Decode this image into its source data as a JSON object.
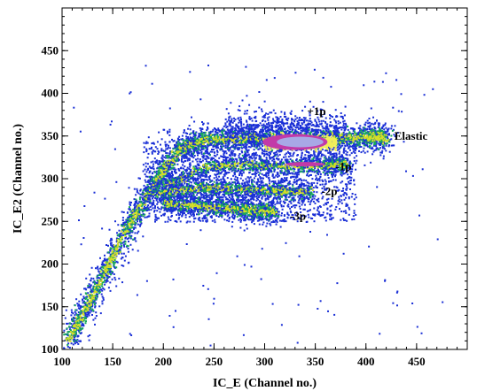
{
  "chart_data": {
    "type": "heatmap",
    "title": "",
    "xlabel": "IC_E (Channel no.)",
    "ylabel": "IC_E2 (Channel no.)",
    "xlim": [
      100,
      500
    ],
    "ylim": [
      100,
      500
    ],
    "x_ticks": [
      100,
      150,
      200,
      250,
      300,
      350,
      400,
      450
    ],
    "y_ticks": [
      100,
      150,
      200,
      250,
      300,
      350,
      400,
      450
    ],
    "grid": false,
    "density_colors": [
      "#1a2fd6",
      "#18a85a",
      "#d6de28",
      "#f0ee5a",
      "#c23aa8",
      "#a8a8e6"
    ],
    "branches": [
      {
        "name": "Elastic",
        "points": [
          [
            105,
            110
          ],
          [
            130,
            165
          ],
          [
            160,
            235
          ],
          [
            190,
            295
          ],
          [
            215,
            335
          ],
          [
            240,
            347
          ],
          [
            280,
            348
          ],
          [
            320,
            348
          ],
          [
            360,
            348
          ],
          [
            400,
            349
          ],
          [
            420,
            350
          ]
        ]
      },
      {
        "name": "-1p",
        "points": [
          [
            200,
            290
          ],
          [
            240,
            315
          ],
          [
            280,
            318
          ],
          [
            320,
            316
          ],
          [
            360,
            316
          ],
          [
            380,
            318
          ]
        ]
      },
      {
        "name": "-2p",
        "points": [
          [
            190,
            282
          ],
          [
            230,
            290
          ],
          [
            270,
            289
          ],
          [
            310,
            287
          ],
          [
            345,
            285
          ]
        ]
      },
      {
        "name": "-3p",
        "points": [
          [
            200,
            272
          ],
          [
            240,
            268
          ],
          [
            280,
            264
          ],
          [
            310,
            262
          ]
        ]
      }
    ],
    "annotations": [
      {
        "text": "+1p",
        "x": 342,
        "y": 379
      },
      {
        "text": "Elastic",
        "x": 428,
        "y": 350
      },
      {
        "text": "-1p",
        "x": 370,
        "y": 314
      },
      {
        "text": "-2p",
        "x": 356,
        "y": 285
      },
      {
        "text": "-3p",
        "x": 325,
        "y": 256
      }
    ]
  }
}
